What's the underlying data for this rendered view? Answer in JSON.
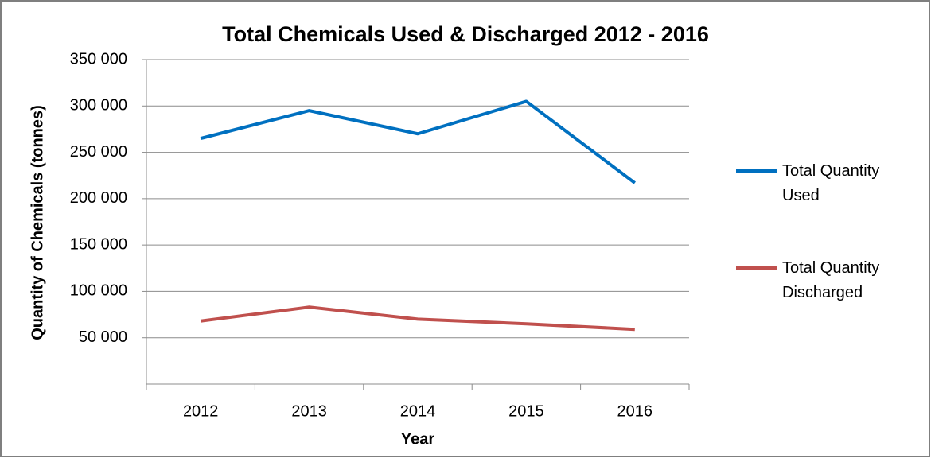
{
  "chart_data": {
    "type": "line",
    "title": "Total Chemicals Used & Discharged 2012 - 2016",
    "x_label": "Year",
    "y_label": "Quantity of Chemicals (tonnes)",
    "categories": [
      "2012",
      "2013",
      "2014",
      "2015",
      "2016"
    ],
    "series": [
      {
        "name": "Total Quantity Used",
        "color": "#0070c0",
        "values": [
          265000,
          295000,
          270000,
          305000,
          217000
        ]
      },
      {
        "name": "Total Quantity Discharged",
        "color": "#c0504d",
        "values": [
          68000,
          83000,
          70000,
          65000,
          59000
        ]
      }
    ],
    "ylim": [
      0,
      350000
    ],
    "yticks": [
      {
        "value": 50000,
        "label": "50 000"
      },
      {
        "value": 100000,
        "label": "100 000"
      },
      {
        "value": 150000,
        "label": "150 000"
      },
      {
        "value": 200000,
        "label": "200 000"
      },
      {
        "value": 250000,
        "label": "250 000"
      },
      {
        "value": 300000,
        "label": "300 000"
      },
      {
        "value": 350000,
        "label": "350 000"
      }
    ],
    "grid": true,
    "legend": "right"
  }
}
